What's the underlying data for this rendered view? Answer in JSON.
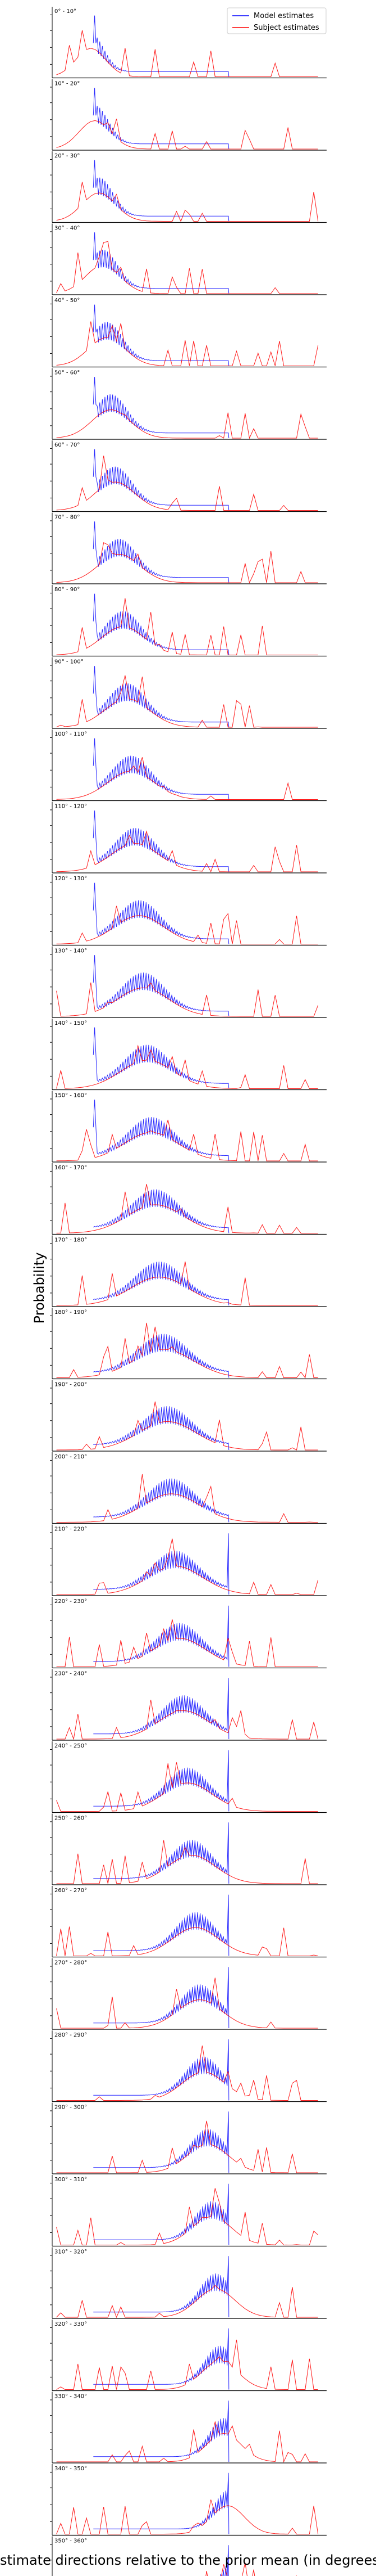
{
  "chart_data": {
    "type": "line",
    "xlabel": "Estimate directions relative to the prior mean (in degrees)",
    "ylabel": "Probability",
    "xlim": [
      -160,
      160
    ],
    "xticks": [
      -150,
      -100,
      -50,
      0,
      50,
      100,
      150
    ],
    "legend": {
      "placement": "top-right"
    },
    "series": [
      {
        "name": "Model estimates",
        "color": "#0000ff"
      },
      {
        "name": "Subject estimates",
        "color": "#ff0000"
      }
    ],
    "panels": [
      "0° - 10°",
      "10° - 20°",
      "20° - 30°",
      "30° - 40°",
      "40° - 50°",
      "50° - 60°",
      "60° - 70°",
      "70° - 80°",
      "80° - 90°",
      "90° - 100°",
      "100° - 110°",
      "110° - 120°",
      "120° - 130°",
      "130° - 140°",
      "140° - 150°",
      "150° - 160°",
      "160° - 170°",
      "170° - 180°",
      "180° - 190°",
      "190° - 200°",
      "200° - 210°",
      "210° - 220°",
      "220° - 230°",
      "230° - 240°",
      "240° - 250°",
      "250° - 260°",
      "260° - 270°",
      "270° - 280°",
      "280° - 290°",
      "290° - 300°",
      "300° - 310°",
      "310° - 320°",
      "320° - 330°",
      "330° - 340°",
      "340° - 350°",
      "350° - 360°"
    ]
  }
}
